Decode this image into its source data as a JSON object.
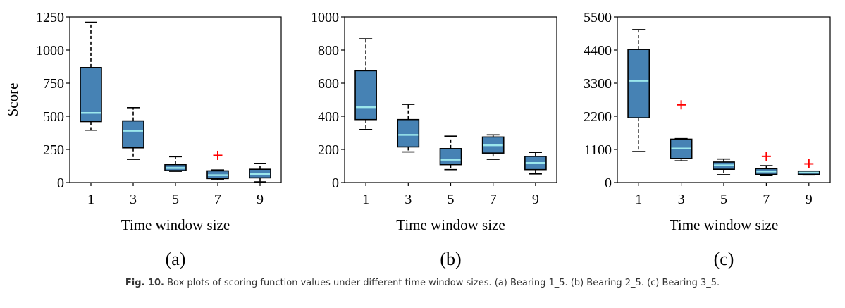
{
  "chart_data": [
    {
      "type": "box",
      "panel_label": "(a)",
      "xlabel": "Time window size",
      "ylabel": "Score",
      "categories": [
        "1",
        "3",
        "5",
        "7",
        "9"
      ],
      "ylim": [
        0,
        1250
      ],
      "yticks": [
        0,
        250,
        500,
        750,
        1000,
        1250
      ],
      "boxes": [
        {
          "whislo": 395,
          "q1": 460,
          "med": 525,
          "q3": 868,
          "whishi": 1210,
          "fliers": []
        },
        {
          "whislo": 175,
          "q1": 262,
          "med": 390,
          "q3": 465,
          "whishi": 565,
          "fliers": []
        },
        {
          "whislo": 85,
          "q1": 90,
          "med": 110,
          "q3": 135,
          "whishi": 195,
          "fliers": []
        },
        {
          "whislo": 22,
          "q1": 30,
          "med": 55,
          "q3": 88,
          "whishi": 95,
          "fliers": [
            205
          ]
        },
        {
          "whislo": 5,
          "q1": 35,
          "med": 65,
          "q3": 100,
          "whishi": 145,
          "fliers": []
        }
      ]
    },
    {
      "type": "box",
      "panel_label": "(b)",
      "xlabel": "Time window size",
      "ylabel": "",
      "categories": [
        "1",
        "3",
        "5",
        "7",
        "9"
      ],
      "ylim": [
        0,
        1000
      ],
      "yticks": [
        0,
        200,
        400,
        600,
        800,
        1000
      ],
      "boxes": [
        {
          "whislo": 320,
          "q1": 380,
          "med": 455,
          "q3": 675,
          "whishi": 868,
          "fliers": []
        },
        {
          "whislo": 185,
          "q1": 215,
          "med": 288,
          "q3": 380,
          "whishi": 472,
          "fliers": []
        },
        {
          "whislo": 78,
          "q1": 108,
          "med": 138,
          "q3": 205,
          "whishi": 280,
          "fliers": []
        },
        {
          "whislo": 140,
          "q1": 178,
          "med": 225,
          "q3": 275,
          "whishi": 288,
          "fliers": []
        },
        {
          "whislo": 52,
          "q1": 78,
          "med": 118,
          "q3": 158,
          "whishi": 182,
          "fliers": []
        }
      ]
    },
    {
      "type": "box",
      "panel_label": "(c)",
      "xlabel": "Time window size",
      "ylabel": "",
      "categories": [
        "1",
        "3",
        "5",
        "7",
        "9"
      ],
      "ylim": [
        0,
        5500
      ],
      "yticks": [
        0,
        1100,
        2200,
        3300,
        4400,
        5500
      ],
      "boxes": [
        {
          "whislo": 1030,
          "q1": 2150,
          "med": 3380,
          "q3": 4420,
          "whishi": 5080,
          "fliers": []
        },
        {
          "whislo": 720,
          "q1": 800,
          "med": 1130,
          "q3": 1440,
          "whishi": 1460,
          "fliers": [
            2580
          ]
        },
        {
          "whislo": 260,
          "q1": 440,
          "med": 570,
          "q3": 680,
          "whishi": 780,
          "fliers": []
        },
        {
          "whislo": 230,
          "q1": 270,
          "med": 370,
          "q3": 460,
          "whishi": 560,
          "fliers": [
            870
          ]
        },
        {
          "whislo": 250,
          "q1": 270,
          "med": 330,
          "q3": 380,
          "whishi": 380,
          "fliers": [
            620
          ]
        }
      ]
    }
  ],
  "caption": {
    "label": "Fig. 10.",
    "text": " Box plots of scoring function values under different time window sizes. (a) Bearing 1_5. (b) Bearing 2_5. (c) Bearing 3_5."
  },
  "colors": {
    "box_fill": "#4682b4",
    "median": "#9be7ec",
    "flier": "#ff0000",
    "axis": "#000000"
  }
}
